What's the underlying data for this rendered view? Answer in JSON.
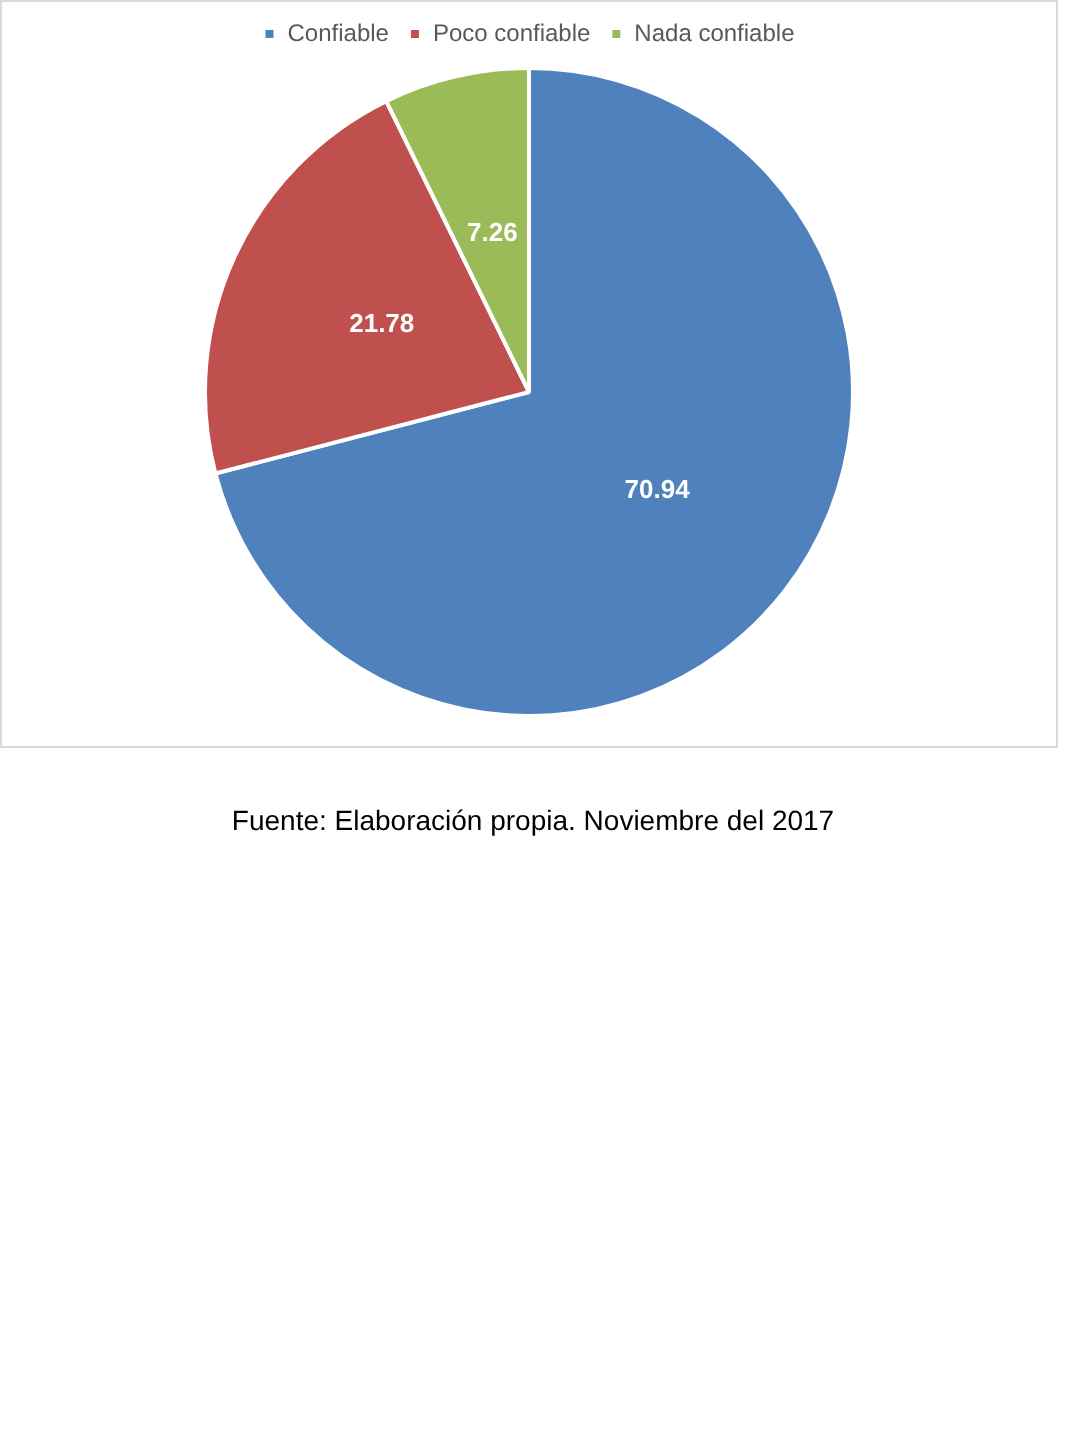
{
  "chart_data": {
    "type": "pie",
    "categories": [
      "Confiable",
      "Poco confiable",
      "Nada confiable"
    ],
    "values": [
      70.94,
      21.78,
      7.26
    ],
    "colors": [
      "#4f81bd",
      "#c0504d",
      "#9bbb59"
    ],
    "data_labels": true,
    "legend": "top",
    "annotations": [
      "Fuente: Elaboración propia.  Noviembre del 2017"
    ]
  }
}
